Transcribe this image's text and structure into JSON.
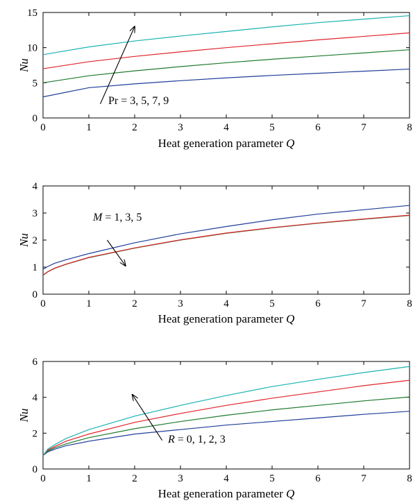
{
  "chart_data": [
    {
      "type": "line",
      "xlabel": "Heat generation parameter Q",
      "ylabel": "Nu",
      "xlim": [
        0,
        8
      ],
      "ylim": [
        0,
        15
      ],
      "xticks": [
        0,
        1,
        2,
        3,
        4,
        5,
        6,
        7,
        8
      ],
      "yticks": [
        0,
        5,
        10,
        15
      ],
      "grid": false,
      "annotation": {
        "text": "Pr = 3, 5, 7, 9",
        "arrow_from": [
          1.25,
          2.0
        ],
        "arrow_to": [
          2.0,
          13.0
        ]
      },
      "series": [
        {
          "color": "#1f3d99",
          "x": [
            0,
            1,
            2,
            3,
            4,
            5,
            6,
            7,
            8
          ],
          "y": [
            3.0,
            4.3,
            4.85,
            5.3,
            5.7,
            6.05,
            6.35,
            6.65,
            6.95
          ]
        },
        {
          "color": "#1e7a2e",
          "x": [
            0,
            1,
            2,
            3,
            4,
            5,
            6,
            7,
            8
          ],
          "y": [
            5.0,
            6.0,
            6.7,
            7.3,
            7.85,
            8.35,
            8.8,
            9.25,
            9.7
          ]
        },
        {
          "color": "#e0242b",
          "x": [
            0,
            1,
            2,
            3,
            4,
            5,
            6,
            7,
            8
          ],
          "y": [
            7.0,
            8.0,
            8.75,
            9.4,
            10.0,
            10.55,
            11.1,
            11.6,
            12.1
          ]
        },
        {
          "color": "#1ab2b2",
          "x": [
            0,
            1,
            2,
            3,
            4,
            5,
            6,
            7,
            8
          ],
          "y": [
            9.0,
            10.1,
            10.95,
            11.65,
            12.3,
            12.95,
            13.55,
            14.05,
            14.55
          ]
        }
      ]
    },
    {
      "type": "line",
      "xlabel": "Heat generation parameter Q",
      "ylabel": "Nu",
      "xlim": [
        0,
        8
      ],
      "ylim": [
        0,
        4
      ],
      "xticks": [
        0,
        1,
        2,
        3,
        4,
        5,
        6,
        7,
        8
      ],
      "yticks": [
        0,
        1,
        2,
        3,
        4
      ],
      "grid": false,
      "annotation": {
        "text": "M = 1, 3, 5",
        "arrow_from": [
          1.4,
          2.0
        ],
        "arrow_to": [
          1.8,
          1.05
        ]
      },
      "series": [
        {
          "color": "#1f3d99",
          "x": [
            0,
            0.1,
            0.25,
            0.5,
            1,
            2,
            3,
            4,
            5,
            6,
            7,
            8
          ],
          "y": [
            0.92,
            1.02,
            1.14,
            1.27,
            1.5,
            1.9,
            2.23,
            2.5,
            2.75,
            2.96,
            3.12,
            3.28
          ]
        },
        {
          "color": "#1e7a2e",
          "x": [
            0,
            0.1,
            0.25,
            0.5,
            1,
            2,
            3,
            4,
            5,
            6,
            7,
            8
          ],
          "y": [
            0.7,
            0.82,
            0.95,
            1.1,
            1.35,
            1.7,
            2.0,
            2.25,
            2.45,
            2.62,
            2.77,
            2.91
          ]
        },
        {
          "color": "#e0242b",
          "x": [
            0,
            0.1,
            0.25,
            0.5,
            1,
            2,
            3,
            4,
            5,
            6,
            7,
            8
          ],
          "y": [
            0.71,
            0.83,
            0.96,
            1.11,
            1.36,
            1.71,
            2.01,
            2.26,
            2.46,
            2.63,
            2.78,
            2.92
          ]
        }
      ]
    },
    {
      "type": "line",
      "xlabel": "Heat generation parameter Q",
      "ylabel": "Nu",
      "xlim": [
        0,
        8
      ],
      "ylim": [
        0,
        6
      ],
      "xticks": [
        0,
        1,
        2,
        3,
        4,
        5,
        6,
        7,
        8
      ],
      "yticks": [
        0,
        2,
        4,
        6
      ],
      "grid": false,
      "annotation": {
        "text": "R = 0, 1, 2, 3",
        "arrow_from": [
          2.6,
          1.6
        ],
        "arrow_to": [
          1.95,
          4.15
        ]
      },
      "series": [
        {
          "color": "#1f3d99",
          "x": [
            0,
            0.1,
            0.25,
            0.5,
            1,
            2,
            3,
            4,
            5,
            6,
            7,
            8
          ],
          "y": [
            0.75,
            0.95,
            1.1,
            1.3,
            1.55,
            1.95,
            2.2,
            2.45,
            2.65,
            2.85,
            3.05,
            3.22
          ]
        },
        {
          "color": "#1e7a2e",
          "x": [
            0,
            0.1,
            0.25,
            0.5,
            1,
            2,
            3,
            4,
            5,
            6,
            7,
            8
          ],
          "y": [
            0.75,
            1.0,
            1.18,
            1.4,
            1.75,
            2.25,
            2.65,
            3.0,
            3.3,
            3.55,
            3.8,
            4.02
          ]
        },
        {
          "color": "#e0242b",
          "x": [
            0,
            0.1,
            0.25,
            0.5,
            1,
            2,
            3,
            4,
            5,
            6,
            7,
            8
          ],
          "y": [
            0.75,
            1.05,
            1.25,
            1.55,
            1.95,
            2.6,
            3.1,
            3.55,
            3.95,
            4.3,
            4.65,
            4.95
          ]
        },
        {
          "color": "#1ab2b2",
          "x": [
            0,
            0.1,
            0.25,
            0.5,
            1,
            2,
            3,
            4,
            5,
            6,
            7,
            8
          ],
          "y": [
            0.75,
            1.1,
            1.35,
            1.7,
            2.2,
            2.95,
            3.55,
            4.1,
            4.6,
            5.0,
            5.38,
            5.72
          ]
        }
      ]
    }
  ]
}
